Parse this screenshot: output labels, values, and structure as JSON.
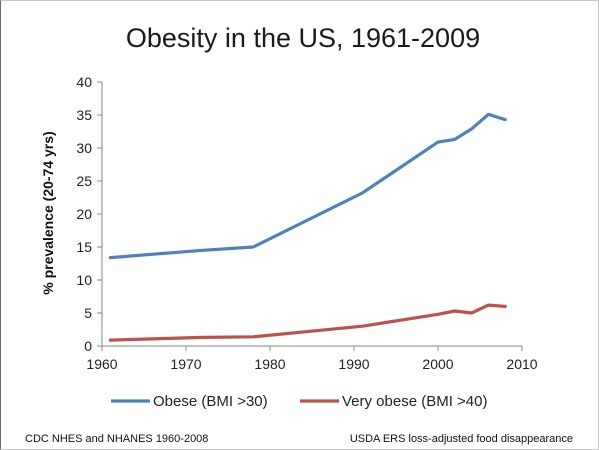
{
  "chart_data": {
    "type": "line",
    "title": "Obesity in the US, 1961-2009",
    "xlabel": "",
    "ylabel": "% prevalence (20-74 yrs)",
    "xlim": [
      1960,
      2010
    ],
    "ylim": [
      0,
      40
    ],
    "xticks": [
      1960,
      1970,
      1980,
      1990,
      2000,
      2010
    ],
    "yticks": [
      0,
      5,
      10,
      15,
      20,
      25,
      30,
      35,
      40
    ],
    "grid": false,
    "legend": "bottom",
    "series": [
      {
        "name": "Obese (BMI >30)",
        "color": "#4f81bd",
        "x": [
          1961,
          1972,
          1978,
          1991,
          2000,
          2002,
          2004,
          2006,
          2008
        ],
        "y": [
          13.4,
          14.5,
          15.0,
          23.2,
          30.9,
          31.3,
          32.9,
          35.1,
          34.3
        ]
      },
      {
        "name": "Very obese (BMI >40)",
        "color": "#c0504d",
        "x": [
          1961,
          1972,
          1978,
          1991,
          2000,
          2002,
          2004,
          2006,
          2008
        ],
        "y": [
          0.9,
          1.3,
          1.4,
          3.0,
          4.8,
          5.3,
          5.0,
          6.2,
          6.0
        ]
      }
    ]
  },
  "footer": {
    "left": "CDC NHES and NHANES 1960-2008",
    "right": "USDA ERS loss-adjusted  food disappearance"
  }
}
